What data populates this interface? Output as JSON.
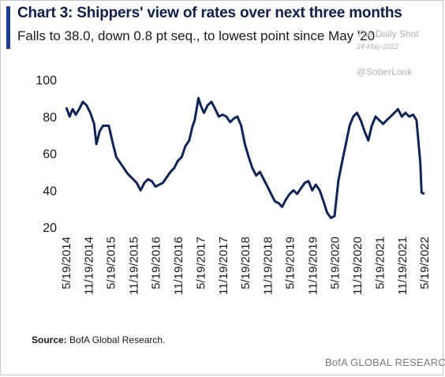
{
  "header": {
    "title": "Chart 3: Shippers' view of rates over next three months",
    "subtitle": "Falls to 38.0, down 0.8 pt seq., to lowest point since May '20"
  },
  "watermark": {
    "line1": "The Daily Shot",
    "line2": "24-May-2022",
    "handle": "@SoberLook"
  },
  "footer": {
    "source_label": "Source:",
    "source_text": " BofA Global Research.",
    "brand": "BofA GLOBAL RESEARCH"
  },
  "colors": {
    "accent": "#1f3a93",
    "line": "#0e2454"
  },
  "chart_data": {
    "type": "line",
    "title": "Chart 3: Shippers' view of rates over next three months",
    "subtitle": "Falls to 38.0, down 0.8 pt seq., to lowest point since May '20",
    "xlabel": "",
    "ylabel": "",
    "ylim": [
      20,
      100
    ],
    "yticks": [
      20,
      40,
      60,
      80,
      100
    ],
    "xticks": [
      "5/19/2014",
      "11/19/2014",
      "5/19/2015",
      "11/19/2015",
      "5/19/2016",
      "11/19/2016",
      "5/19/2017",
      "11/19/2017",
      "5/19/2018",
      "11/19/2018",
      "5/19/2019",
      "11/19/2019",
      "5/19/2020",
      "11/19/2020",
      "5/19/2021",
      "11/19/2021",
      "5/19/2022"
    ],
    "grid": false,
    "legend": "none",
    "series": [
      {
        "values": [
          [
            "2014-05-19",
            85
          ],
          [
            "2014-06-15",
            80
          ],
          [
            "2014-07-10",
            84
          ],
          [
            "2014-08-05",
            81
          ],
          [
            "2014-09-01",
            84
          ],
          [
            "2014-10-01",
            88
          ],
          [
            "2014-11-01",
            86
          ],
          [
            "2014-12-01",
            82
          ],
          [
            "2015-01-01",
            76
          ],
          [
            "2015-01-20",
            65
          ],
          [
            "2015-02-15",
            72
          ],
          [
            "2015-03-15",
            75
          ],
          [
            "2015-05-01",
            75
          ],
          [
            "2015-06-01",
            66
          ],
          [
            "2015-07-01",
            58
          ],
          [
            "2015-08-01",
            55
          ],
          [
            "2015-09-01",
            52
          ],
          [
            "2015-10-01",
            49
          ],
          [
            "2015-11-15",
            46
          ],
          [
            "2015-12-15",
            44
          ],
          [
            "2016-01-15",
            40
          ],
          [
            "2016-02-15",
            44
          ],
          [
            "2016-03-15",
            46
          ],
          [
            "2016-04-15",
            45
          ],
          [
            "2016-05-15",
            42
          ],
          [
            "2016-06-15",
            43
          ],
          [
            "2016-07-15",
            44
          ],
          [
            "2016-08-15",
            47
          ],
          [
            "2016-09-15",
            50
          ],
          [
            "2016-10-15",
            52
          ],
          [
            "2016-11-15",
            56
          ],
          [
            "2016-12-15",
            58
          ],
          [
            "2017-01-15",
            64
          ],
          [
            "2017-02-15",
            67
          ],
          [
            "2017-03-15",
            75
          ],
          [
            "2017-04-01",
            78
          ],
          [
            "2017-05-01",
            90
          ],
          [
            "2017-05-20",
            86
          ],
          [
            "2017-06-15",
            82
          ],
          [
            "2017-07-15",
            86
          ],
          [
            "2017-08-15",
            88
          ],
          [
            "2017-09-15",
            84
          ],
          [
            "2017-10-15",
            80
          ],
          [
            "2017-11-15",
            81
          ],
          [
            "2017-12-15",
            80
          ],
          [
            "2018-01-15",
            77
          ],
          [
            "2018-02-15",
            79
          ],
          [
            "2018-03-15",
            80
          ],
          [
            "2018-04-15",
            75
          ],
          [
            "2018-05-15",
            65
          ],
          [
            "2018-06-15",
            58
          ],
          [
            "2018-07-15",
            52
          ],
          [
            "2018-08-15",
            48
          ],
          [
            "2018-09-15",
            50
          ],
          [
            "2018-10-15",
            46
          ],
          [
            "2018-11-15",
            42
          ],
          [
            "2018-12-15",
            38
          ],
          [
            "2019-01-15",
            34
          ],
          [
            "2019-02-15",
            33
          ],
          [
            "2019-03-15",
            31
          ],
          [
            "2019-04-15",
            35
          ],
          [
            "2019-05-15",
            38
          ],
          [
            "2019-06-15",
            40
          ],
          [
            "2019-07-15",
            38
          ],
          [
            "2019-08-15",
            41
          ],
          [
            "2019-09-15",
            44
          ],
          [
            "2019-10-15",
            45
          ],
          [
            "2019-11-15",
            40
          ],
          [
            "2019-12-15",
            43
          ],
          [
            "2020-01-15",
            40
          ],
          [
            "2020-02-15",
            34
          ],
          [
            "2020-03-15",
            28
          ],
          [
            "2020-04-15",
            25
          ],
          [
            "2020-05-15",
            26
          ],
          [
            "2020-06-15",
            45
          ],
          [
            "2020-07-15",
            55
          ],
          [
            "2020-08-15",
            65
          ],
          [
            "2020-09-15",
            75
          ],
          [
            "2020-10-15",
            80
          ],
          [
            "2020-11-15",
            82
          ],
          [
            "2020-12-15",
            78
          ],
          [
            "2021-01-15",
            72
          ],
          [
            "2021-02-15",
            67
          ],
          [
            "2021-03-15",
            75
          ],
          [
            "2021-04-15",
            80
          ],
          [
            "2021-05-15",
            78
          ],
          [
            "2021-06-15",
            76
          ],
          [
            "2021-07-15",
            78
          ],
          [
            "2021-08-15",
            80
          ],
          [
            "2021-09-15",
            82
          ],
          [
            "2021-10-15",
            84
          ],
          [
            "2021-11-15",
            80
          ],
          [
            "2021-12-15",
            82
          ],
          [
            "2022-01-15",
            80
          ],
          [
            "2022-02-15",
            81
          ],
          [
            "2022-03-15",
            78
          ],
          [
            "2022-04-15",
            55
          ],
          [
            "2022-04-25",
            38.8
          ],
          [
            "2022-05-19",
            38.0
          ]
        ]
      }
    ]
  }
}
